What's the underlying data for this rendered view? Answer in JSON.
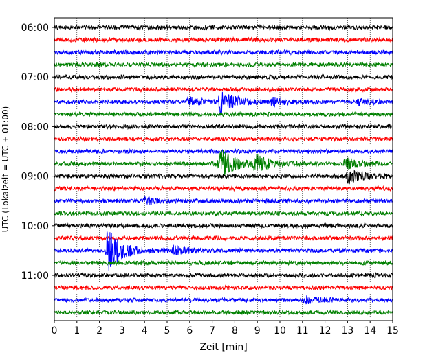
{
  "chart_data": {
    "type": "line",
    "title": "",
    "xlabel": "Zeit  [min]",
    "ylabel": "UTC (Lokalzeit = UTC + 01:00)",
    "xlim": [
      0,
      15
    ],
    "x_ticks": [
      "0",
      "1",
      "2",
      "3",
      "4",
      "5",
      "6",
      "7",
      "8",
      "9",
      "10",
      "11",
      "12",
      "13",
      "14",
      "15"
    ],
    "y_tick_labels": [
      "06:00",
      "07:00",
      "08:00",
      "09:00",
      "10:00",
      "11:00"
    ],
    "trace_start_time": "06:00",
    "trace_interval_min": 15,
    "trace_count": 24,
    "trace_colors": [
      "#000000",
      "#ff0000",
      "#0000ff",
      "#008000"
    ],
    "grid": "vertical dotted lines at each minute",
    "events": [
      {
        "trace": 6,
        "t_min": 7.35,
        "amplitude": 1.8
      },
      {
        "trace": 6,
        "t_min": 5.9,
        "amplitude": 0.6
      },
      {
        "trace": 6,
        "t_min": 9.6,
        "amplitude": 0.5
      },
      {
        "trace": 6,
        "t_min": 13.5,
        "amplitude": 0.4
      },
      {
        "trace": 11,
        "t_min": 7.3,
        "amplitude": 2.4
      },
      {
        "trace": 11,
        "t_min": 8.9,
        "amplitude": 1.2
      },
      {
        "trace": 11,
        "t_min": 12.9,
        "amplitude": 0.8
      },
      {
        "trace": 12,
        "t_min": 13.0,
        "amplitude": 1.0
      },
      {
        "trace": 14,
        "t_min": 4.0,
        "amplitude": 0.5
      },
      {
        "trace": 18,
        "t_min": 2.35,
        "amplitude": 3.2
      },
      {
        "trace": 18,
        "t_min": 5.3,
        "amplitude": 0.6
      },
      {
        "trace": 22,
        "t_min": 11.1,
        "amplitude": 0.5
      }
    ]
  }
}
